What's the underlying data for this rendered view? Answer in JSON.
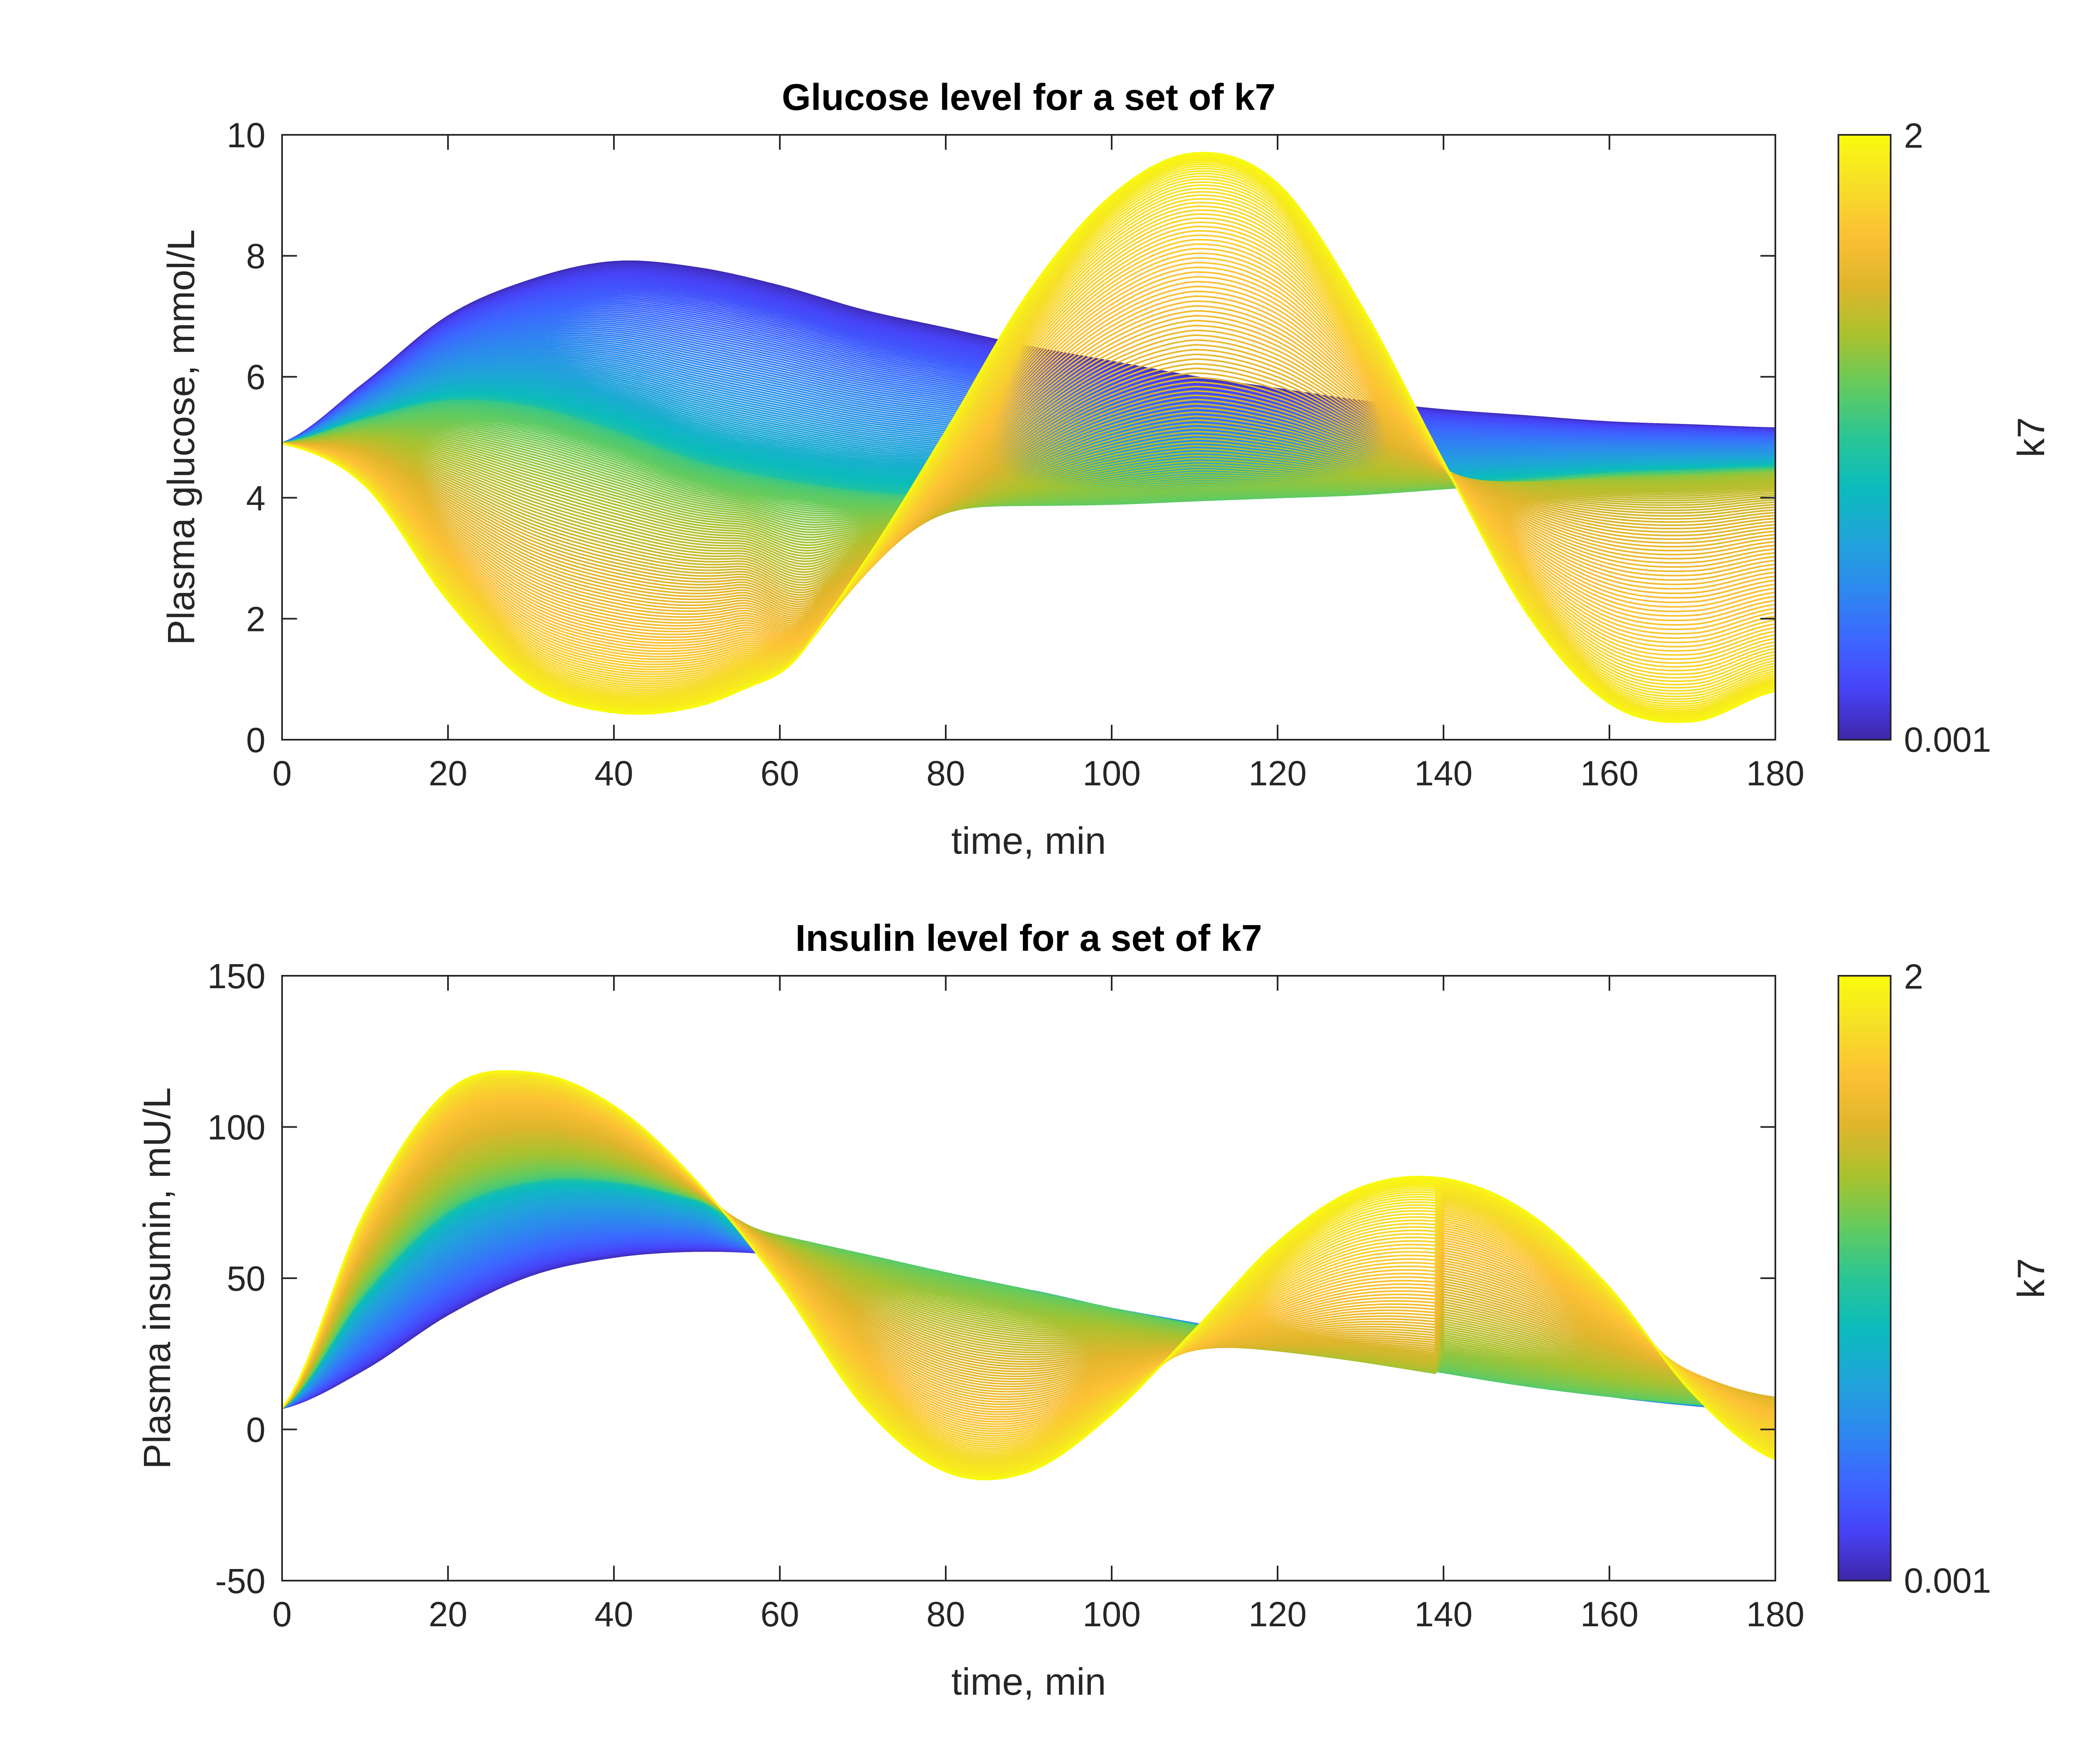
{
  "colors": {
    "parula": [
      "#3e26a8",
      "#4743f8",
      "#3c67ff",
      "#2d89ee",
      "#1fa5d8",
      "#0bbbbc",
      "#2ac595",
      "#63cb5f",
      "#a8c22f",
      "#dfb52b",
      "#fcc035",
      "#f6df27",
      "#f9fb0e"
    ],
    "axis": "#262626",
    "background": "#ffffff"
  },
  "chart_data": [
    {
      "type": "line",
      "title": "Glucose level for a set of k7",
      "xlabel": "time, min",
      "ylabel": "Plasma glucose, mmol/L",
      "xlim": [
        0,
        180
      ],
      "ylim": [
        0,
        10
      ],
      "xticks": [
        "0",
        "20",
        "40",
        "60",
        "80",
        "100",
        "120",
        "140",
        "160",
        "180"
      ],
      "yticks": [
        "0",
        "2",
        "4",
        "6",
        "8",
        "10"
      ],
      "colorbar": {
        "label": "k7",
        "min_label": "0.001",
        "max_label": "2",
        "range": [
          0.001,
          2
        ]
      },
      "series_count": 250,
      "family_description_points": {
        "k7_0.001": {
          "x": [
            0,
            10,
            20,
            30,
            40,
            50,
            60,
            70,
            80,
            90,
            100,
            110,
            120,
            130,
            140,
            150,
            160,
            170,
            180
          ],
          "y": [
            4.9,
            5.9,
            7.0,
            7.6,
            7.9,
            7.8,
            7.5,
            7.1,
            6.8,
            6.5,
            6.25,
            6.0,
            5.8,
            5.6,
            5.45,
            5.35,
            5.25,
            5.2,
            5.15
          ]
        },
        "k7_mid": {
          "x": [
            0,
            10,
            20,
            30,
            40,
            50,
            60,
            70,
            80,
            90,
            100,
            110,
            120,
            130,
            140,
            150,
            160,
            170,
            180
          ],
          "y": [
            4.9,
            5.3,
            5.6,
            5.5,
            5.1,
            4.6,
            4.3,
            4.1,
            4.0,
            3.95,
            3.95,
            4.0,
            4.05,
            4.1,
            4.2,
            4.3,
            4.4,
            4.45,
            4.5
          ]
        },
        "k7_2_low_branch": {
          "x": [
            0,
            10,
            20,
            30,
            40,
            50,
            60,
            70,
            80,
            90,
            100,
            110,
            120,
            130,
            140,
            150,
            160,
            170,
            180
          ],
          "y": [
            4.9,
            4.2,
            2.3,
            0.9,
            0.45,
            0.55,
            1.1,
            1.6,
            2.0,
            2.25,
            2.45,
            2.6,
            2.75,
            2.9,
            3.0,
            3.1,
            3.2,
            3.3,
            3.45
          ]
        },
        "k7_2_high_branch": {
          "x": [
            0,
            10,
            20,
            30,
            40,
            50,
            60,
            70,
            80,
            90,
            100,
            110,
            120,
            130,
            140,
            150,
            160,
            170,
            180
          ],
          "y": [
            4.9,
            4.2,
            2.3,
            0.9,
            0.45,
            0.55,
            1.1,
            2.9,
            5.1,
            7.4,
            9.0,
            9.7,
            9.2,
            7.2,
            4.6,
            2.1,
            0.6,
            0.3,
            0.8
          ]
        },
        "k7_2_upper_tail": {
          "x": [
            110,
            120,
            130,
            140,
            150,
            160,
            170,
            180
          ],
          "y": [
            9.7,
            8.6,
            7.4,
            6.9,
            6.5,
            6.25,
            6.05,
            6.0
          ]
        }
      }
    },
    {
      "type": "line",
      "title": "Insulin level for a set of k7",
      "xlabel": "time, min",
      "ylabel": "Plasma insumin, mU/L",
      "xlim": [
        0,
        180
      ],
      "ylim": [
        -50,
        150
      ],
      "xticks": [
        "0",
        "20",
        "40",
        "60",
        "80",
        "100",
        "120",
        "140",
        "160",
        "180"
      ],
      "yticks": [
        "-50",
        "0",
        "50",
        "100",
        "150"
      ],
      "colorbar": {
        "label": "k7",
        "min_label": "0.001",
        "max_label": "2",
        "range": [
          0.001,
          2
        ]
      },
      "series_count": 250,
      "family_description_points": {
        "k7_0.001": {
          "x": [
            0,
            10,
            20,
            30,
            40,
            50,
            60,
            70,
            80,
            90,
            100,
            110,
            120,
            130,
            140,
            150,
            160,
            170,
            180
          ],
          "y": [
            7,
            20,
            38,
            51,
            57,
            59,
            58,
            55,
            50,
            46,
            40,
            35,
            30,
            25,
            20,
            15,
            11,
            8,
            6
          ]
        },
        "k7_mid": {
          "x": [
            0,
            10,
            20,
            30,
            40,
            50,
            60,
            70,
            80,
            90,
            100,
            110,
            120,
            130,
            140,
            150,
            160,
            170,
            180
          ],
          "y": [
            7,
            45,
            72,
            82,
            82,
            76,
            68,
            58,
            50,
            43,
            37,
            32,
            27,
            23,
            19,
            15,
            12,
            9,
            7
          ]
        },
        "k7_2_main": {
          "x": [
            0,
            10,
            20,
            30,
            40,
            50,
            60,
            70,
            80,
            90,
            100,
            110,
            120,
            130,
            140,
            150,
            160,
            170,
            180
          ],
          "y": [
            7,
            72,
            112,
            118,
            107,
            82,
            48,
            8,
            -14,
            -14,
            5,
            33,
            62,
            80,
            83,
            72,
            47,
            12,
            -10
          ]
        },
        "k7_2_upper_tail": {
          "x": [
            50,
            60,
            70,
            80,
            90,
            100,
            110,
            120,
            130,
            140,
            150,
            160,
            170,
            180
          ],
          "y": [
            76,
            68,
            60,
            53,
            46,
            40,
            34,
            28,
            23,
            18,
            14,
            11,
            9,
            7
          ]
        },
        "k7_2_lower_floor": {
          "x": [
            100,
            110,
            120,
            130,
            140,
            150,
            160,
            170,
            180
          ],
          "y": [
            2,
            4,
            5,
            6,
            7,
            7,
            7,
            6,
            5
          ]
        },
        "k7_2_second_tail": {
          "x": [
            140,
            150,
            160,
            170,
            180
          ],
          "y": [
            83,
            72,
            55,
            45,
            32
          ]
        }
      }
    }
  ]
}
